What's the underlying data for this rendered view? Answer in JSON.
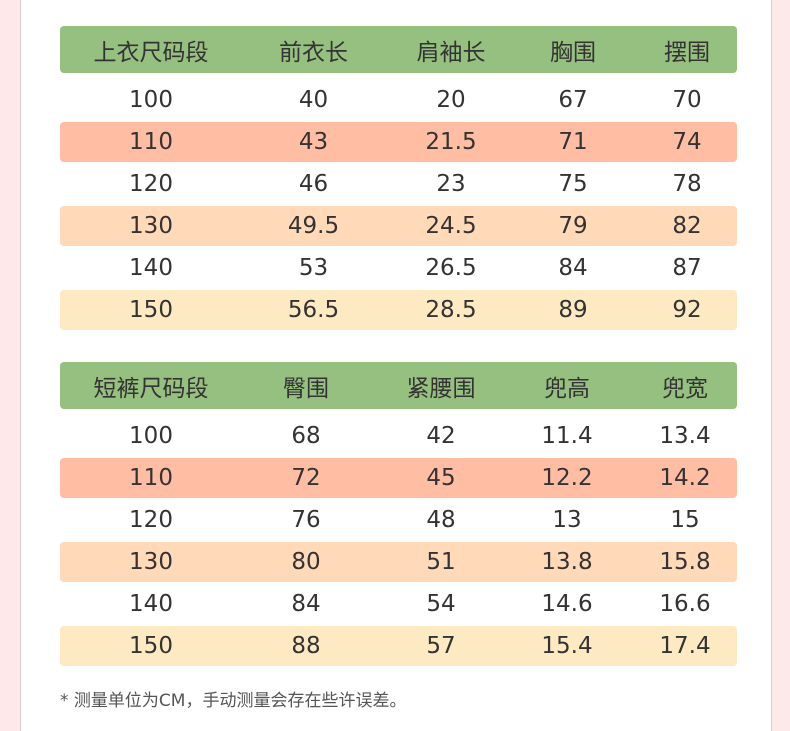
{
  "colors": {
    "header_bg": "#96c07f",
    "row_110": "#ffbda3",
    "row_130": "#ffd9b8",
    "row_150": "#fdeac2",
    "page_bg": "#fde9ea"
  },
  "top": {
    "headers": [
      "上衣尺码段",
      "前衣长",
      "肩袖长",
      "胸围",
      "摆围"
    ],
    "rows": [
      [
        "100",
        "40",
        "20",
        "67",
        "70"
      ],
      [
        "110",
        "43",
        "21.5",
        "71",
        "74"
      ],
      [
        "120",
        "46",
        "23",
        "75",
        "78"
      ],
      [
        "130",
        "49.5",
        "24.5",
        "79",
        "82"
      ],
      [
        "140",
        "53",
        "26.5",
        "84",
        "87"
      ],
      [
        "150",
        "56.5",
        "28.5",
        "89",
        "92"
      ]
    ]
  },
  "shorts": {
    "headers": [
      "短裤尺码段",
      "臀围",
      "紧腰围",
      "兜高",
      "兜宽"
    ],
    "rows": [
      [
        "100",
        "68",
        "42",
        "11.4",
        "13.4"
      ],
      [
        "110",
        "72",
        "45",
        "12.2",
        "14.2"
      ],
      [
        "120",
        "76",
        "48",
        "13",
        "15"
      ],
      [
        "130",
        "80",
        "51",
        "13.8",
        "15.8"
      ],
      [
        "140",
        "84",
        "54",
        "14.6",
        "16.6"
      ],
      [
        "150",
        "88",
        "57",
        "15.4",
        "17.4"
      ]
    ]
  },
  "note": "* 测量单位为CM，手动测量会存在些许误差。"
}
